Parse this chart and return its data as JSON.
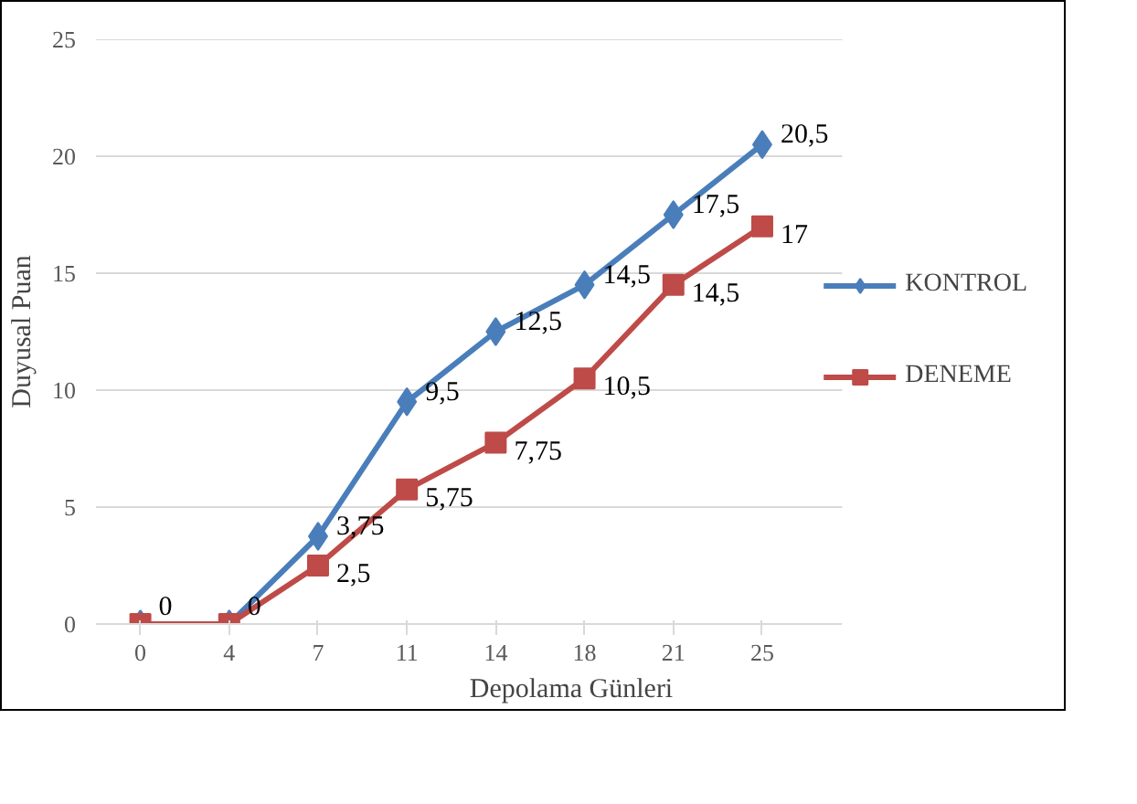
{
  "chart_data": {
    "type": "line",
    "xlabel": "Depolama Günleri",
    "ylabel": "Duyusal Puan",
    "categories": [
      "0",
      "4",
      "7",
      "11",
      "14",
      "18",
      "21",
      "25"
    ],
    "ylim": [
      0,
      25
    ],
    "yticks": [
      0,
      5,
      10,
      15,
      20,
      25
    ],
    "grid": "y",
    "legend": "right",
    "series": [
      {
        "name": "KONTROL",
        "color": "#4a7ebb",
        "marker": "diamond",
        "values": [
          0,
          0,
          3.75,
          9.5,
          12.5,
          14.5,
          17.5,
          20.5
        ],
        "value_labels": [
          null,
          null,
          "3,75",
          "9,5",
          "12,5",
          "14,5",
          "17,5",
          "20,5"
        ]
      },
      {
        "name": "DENEME",
        "color": "#be4b48",
        "marker": "square",
        "values": [
          0,
          0,
          2.5,
          5.75,
          7.75,
          10.5,
          14.5,
          17
        ],
        "value_labels": [
          "0",
          "0",
          "2,5",
          "5,75",
          "7,75",
          "10,5",
          "14,5",
          "17"
        ]
      }
    ]
  }
}
